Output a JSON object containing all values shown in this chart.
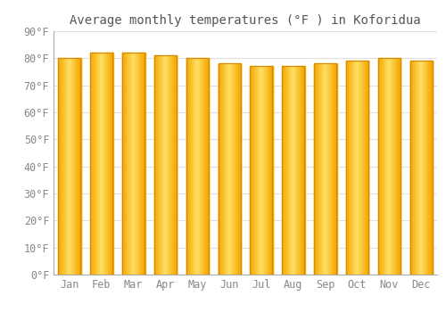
{
  "months": [
    "Jan",
    "Feb",
    "Mar",
    "Apr",
    "May",
    "Jun",
    "Jul",
    "Aug",
    "Sep",
    "Oct",
    "Nov",
    "Dec"
  ],
  "values": [
    80,
    82,
    82,
    81,
    80,
    78,
    77,
    77,
    78,
    79,
    80,
    79
  ],
  "title": "Average monthly temperatures (°F ) in Koforidua",
  "ylim": [
    0,
    90
  ],
  "yticks": [
    0,
    10,
    20,
    30,
    40,
    50,
    60,
    70,
    80,
    90
  ],
  "ytick_labels": [
    "0°F",
    "10°F",
    "20°F",
    "30°F",
    "40°F",
    "50°F",
    "60°F",
    "70°F",
    "80°F",
    "90°F"
  ],
  "bar_color_center": "#FFD966",
  "bar_color_edge": "#F5A800",
  "bar_edge_outline": "#D4880A",
  "background_color": "#FFFFFF",
  "grid_color": "#E0E0E0",
  "title_fontsize": 10,
  "tick_fontsize": 8.5
}
